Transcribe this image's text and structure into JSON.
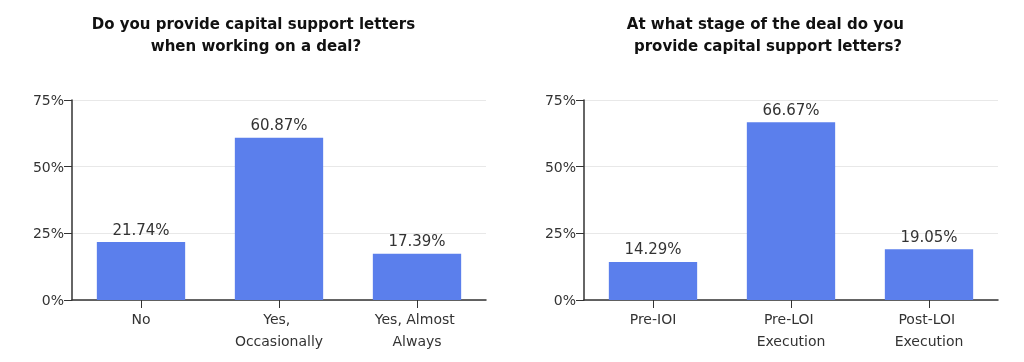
{
  "chart_data": [
    {
      "type": "bar",
      "title": "Do you provide capital support letters when working on a deal?",
      "categories": [
        "No",
        "Yes, Occasionally",
        "Yes, Almost Always"
      ],
      "values": [
        21.74,
        60.87,
        17.39
      ],
      "color": "#5b7fec",
      "value_labels": [
        "21.74%",
        "60.87%",
        "17.39%"
      ],
      "ylim": [
        0,
        75
      ],
      "yticks": [
        {
          "value": 0,
          "label": "0%"
        },
        {
          "value": 25,
          "label": "25%"
        },
        {
          "value": 50,
          "label": "50%"
        },
        {
          "value": 75,
          "label": "75%"
        }
      ],
      "grid": "y"
    },
    {
      "type": "bar",
      "title": "At what stage of the deal do you provide capital support letters?",
      "categories": [
        "Pre-IOI",
        "Pre-LOI Execution",
        "Post-LOI Execution"
      ],
      "values": [
        14.29,
        66.67,
        19.05
      ],
      "color": "#5b7fec",
      "value_labels": [
        "14.29%",
        "66.67%",
        "19.05%"
      ],
      "ylim": [
        0,
        75
      ],
      "yticks": [
        {
          "value": 0,
          "label": "0%"
        },
        {
          "value": 25,
          "label": "25%"
        },
        {
          "value": 50,
          "label": "50%"
        },
        {
          "value": 75,
          "label": "75%"
        }
      ],
      "grid": "y"
    }
  ]
}
